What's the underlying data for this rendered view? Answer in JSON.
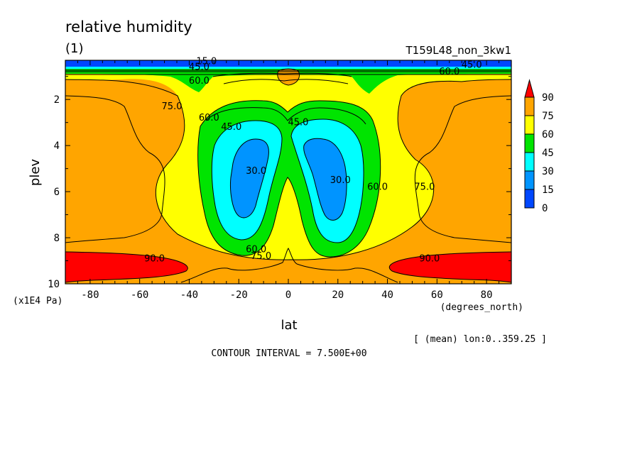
{
  "chart_data": {
    "type": "contour",
    "title": "relative humidity",
    "subtitle_left": "(1)",
    "subtitle_right": "T159L48_non_3kw1",
    "xlabel": "lat",
    "xunits": "(degrees_north)",
    "ylabel": "plev",
    "yunits": "(x1E4 Pa)",
    "xlim": [
      -90,
      90
    ],
    "ylim": [
      0.3,
      10
    ],
    "y_reversed": true,
    "x_ticks": [
      "-80",
      "-60",
      "-40",
      "-20",
      "0",
      "20",
      "40",
      "60",
      "80"
    ],
    "x_tick_values": [
      -80,
      -60,
      -40,
      -20,
      0,
      20,
      40,
      60,
      80
    ],
    "y_ticks": [
      "2",
      "4",
      "6",
      "8",
      "10"
    ],
    "y_tick_values": [
      2,
      4,
      6,
      8,
      10
    ],
    "contour_interval_text": "CONTOUR INTERVAL = 7.500E+00",
    "mean_note": "[ (mean) lon:0..359.25 ]",
    "colorbar": {
      "levels": [
        "90",
        "75",
        "60",
        "45",
        "30",
        "15",
        "0"
      ],
      "colors": [
        "#ff0000",
        "#ffa500",
        "#ffff00",
        "#00e400",
        "#00ffff",
        "#0094ff",
        "#0047ff"
      ]
    },
    "contour_labels": [
      {
        "text": "15.0",
        "lat": -33,
        "p": 0.35
      },
      {
        "text": "45.0",
        "lat": -36,
        "p": 0.6
      },
      {
        "text": "60.0",
        "lat": -36,
        "p": 1.2
      },
      {
        "text": "75.0",
        "lat": -47,
        "p": 2.3
      },
      {
        "text": "60.0",
        "lat": -32,
        "p": 2.8
      },
      {
        "text": "45.0",
        "lat": -23,
        "p": 3.2
      },
      {
        "text": "30.0",
        "lat": -13,
        "p": 5.1
      },
      {
        "text": "60.0",
        "lat": -13,
        "p": 8.5
      },
      {
        "text": "75.0",
        "lat": -11,
        "p": 8.8
      },
      {
        "text": "90.0",
        "lat": -54,
        "p": 8.9
      },
      {
        "text": "45.0",
        "lat": 4,
        "p": 3.0
      },
      {
        "text": "30.0",
        "lat": 21,
        "p": 5.5
      },
      {
        "text": "60.0",
        "lat": 36,
        "p": 5.8
      },
      {
        "text": "75.0",
        "lat": 55,
        "p": 5.8
      },
      {
        "text": "90.0",
        "lat": 57,
        "p": 8.9
      },
      {
        "text": "60.0",
        "lat": 65,
        "p": 0.8
      },
      {
        "text": "45.0",
        "lat": 74,
        "p": 0.5
      }
    ]
  }
}
